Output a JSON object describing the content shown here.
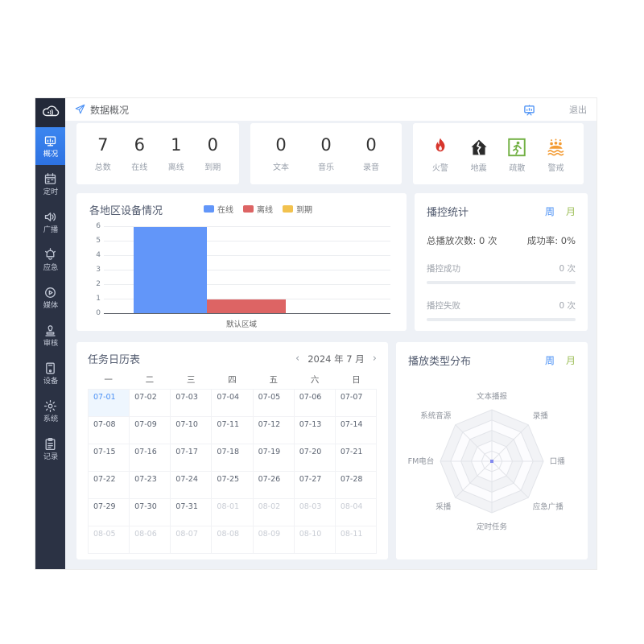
{
  "header": {
    "breadcrumb": "数据概况",
    "logout_label": "退出"
  },
  "sidebar": {
    "items": [
      {
        "key": "overview",
        "label": "概况",
        "active": true
      },
      {
        "key": "schedule",
        "label": "定时",
        "active": false
      },
      {
        "key": "broadcast",
        "label": "广播",
        "active": false
      },
      {
        "key": "emergency",
        "label": "应急",
        "active": false
      },
      {
        "key": "media",
        "label": "媒体",
        "active": false
      },
      {
        "key": "review",
        "label": "审核",
        "active": false
      },
      {
        "key": "device",
        "label": "设备",
        "active": false
      },
      {
        "key": "system",
        "label": "系统",
        "active": false
      },
      {
        "key": "records",
        "label": "记录",
        "active": false
      }
    ]
  },
  "device_stats": {
    "items": [
      {
        "key": "total",
        "value": "7",
        "label": "总数"
      },
      {
        "key": "online",
        "value": "6",
        "label": "在线"
      },
      {
        "key": "offline",
        "value": "1",
        "label": "离线"
      },
      {
        "key": "expired",
        "value": "0",
        "label": "到期"
      }
    ]
  },
  "media_stats": {
    "items": [
      {
        "key": "text",
        "value": "0",
        "label": "文本"
      },
      {
        "key": "music",
        "value": "0",
        "label": "音乐"
      },
      {
        "key": "record",
        "value": "0",
        "label": "录音"
      }
    ]
  },
  "emergency_types": {
    "items": [
      {
        "key": "fire",
        "label": "火警",
        "color": "#d7352c"
      },
      {
        "key": "earthquake",
        "label": "地震",
        "color": "#2b2b2b"
      },
      {
        "key": "evacuation",
        "label": "疏散",
        "color": "#72b043"
      },
      {
        "key": "alert",
        "label": "警戒",
        "color": "#f39c35"
      }
    ]
  },
  "region_chart": {
    "title": "各地区设备情况",
    "chart_data": {
      "type": "bar",
      "categories": [
        "默认区域"
      ],
      "series": [
        {
          "name": "在线",
          "color": "#6296f9",
          "values": [
            6
          ]
        },
        {
          "name": "离线",
          "color": "#dd6464",
          "values": [
            1
          ]
        },
        {
          "name": "到期",
          "color": "#f2c24e",
          "values": [
            0
          ]
        }
      ],
      "ylim": [
        0,
        6
      ],
      "grid": true,
      "legend_position": "top"
    }
  },
  "playback_stats": {
    "title": "播控统计",
    "week_label": "周",
    "month_label": "月",
    "total_label": "总播放次数:",
    "total_value": "0 次",
    "rate_label": "成功率:",
    "rate_value": "0%",
    "rows": [
      {
        "label": "播控成功",
        "value": "0 次",
        "percent": 0
      },
      {
        "label": "播控失败",
        "value": "0 次",
        "percent": 0
      }
    ]
  },
  "calendar": {
    "title": "任务日历表",
    "prev_label": "‹",
    "next_label": "›",
    "month_label": "2024 年 7 月",
    "weekdays": [
      "一",
      "二",
      "三",
      "四",
      "五",
      "六",
      "日"
    ],
    "selected": "07-01",
    "days": [
      "07-01",
      "07-02",
      "07-03",
      "07-04",
      "07-05",
      "07-06",
      "07-07",
      "07-08",
      "07-09",
      "07-10",
      "07-11",
      "07-12",
      "07-13",
      "07-14",
      "07-15",
      "07-16",
      "07-17",
      "07-18",
      "07-19",
      "07-20",
      "07-21",
      "07-22",
      "07-23",
      "07-24",
      "07-25",
      "07-26",
      "07-27",
      "07-28",
      "07-29",
      "07-30",
      "07-31",
      "08-01",
      "08-02",
      "08-03",
      "08-04",
      "08-05",
      "08-06",
      "08-07",
      "08-08",
      "08-09",
      "08-10",
      "08-11"
    ]
  },
  "radar_chart": {
    "title": "播放类型分布",
    "week_label": "周",
    "month_label": "月",
    "chart_data": {
      "type": "radar",
      "categories": [
        "文本播报",
        "录播",
        "口播",
        "应急广播",
        "定时任务",
        "采播",
        "FM电台",
        "系统音源"
      ],
      "values": [
        0,
        0,
        0,
        0,
        0,
        0,
        0,
        0
      ],
      "levels": 5
    }
  }
}
